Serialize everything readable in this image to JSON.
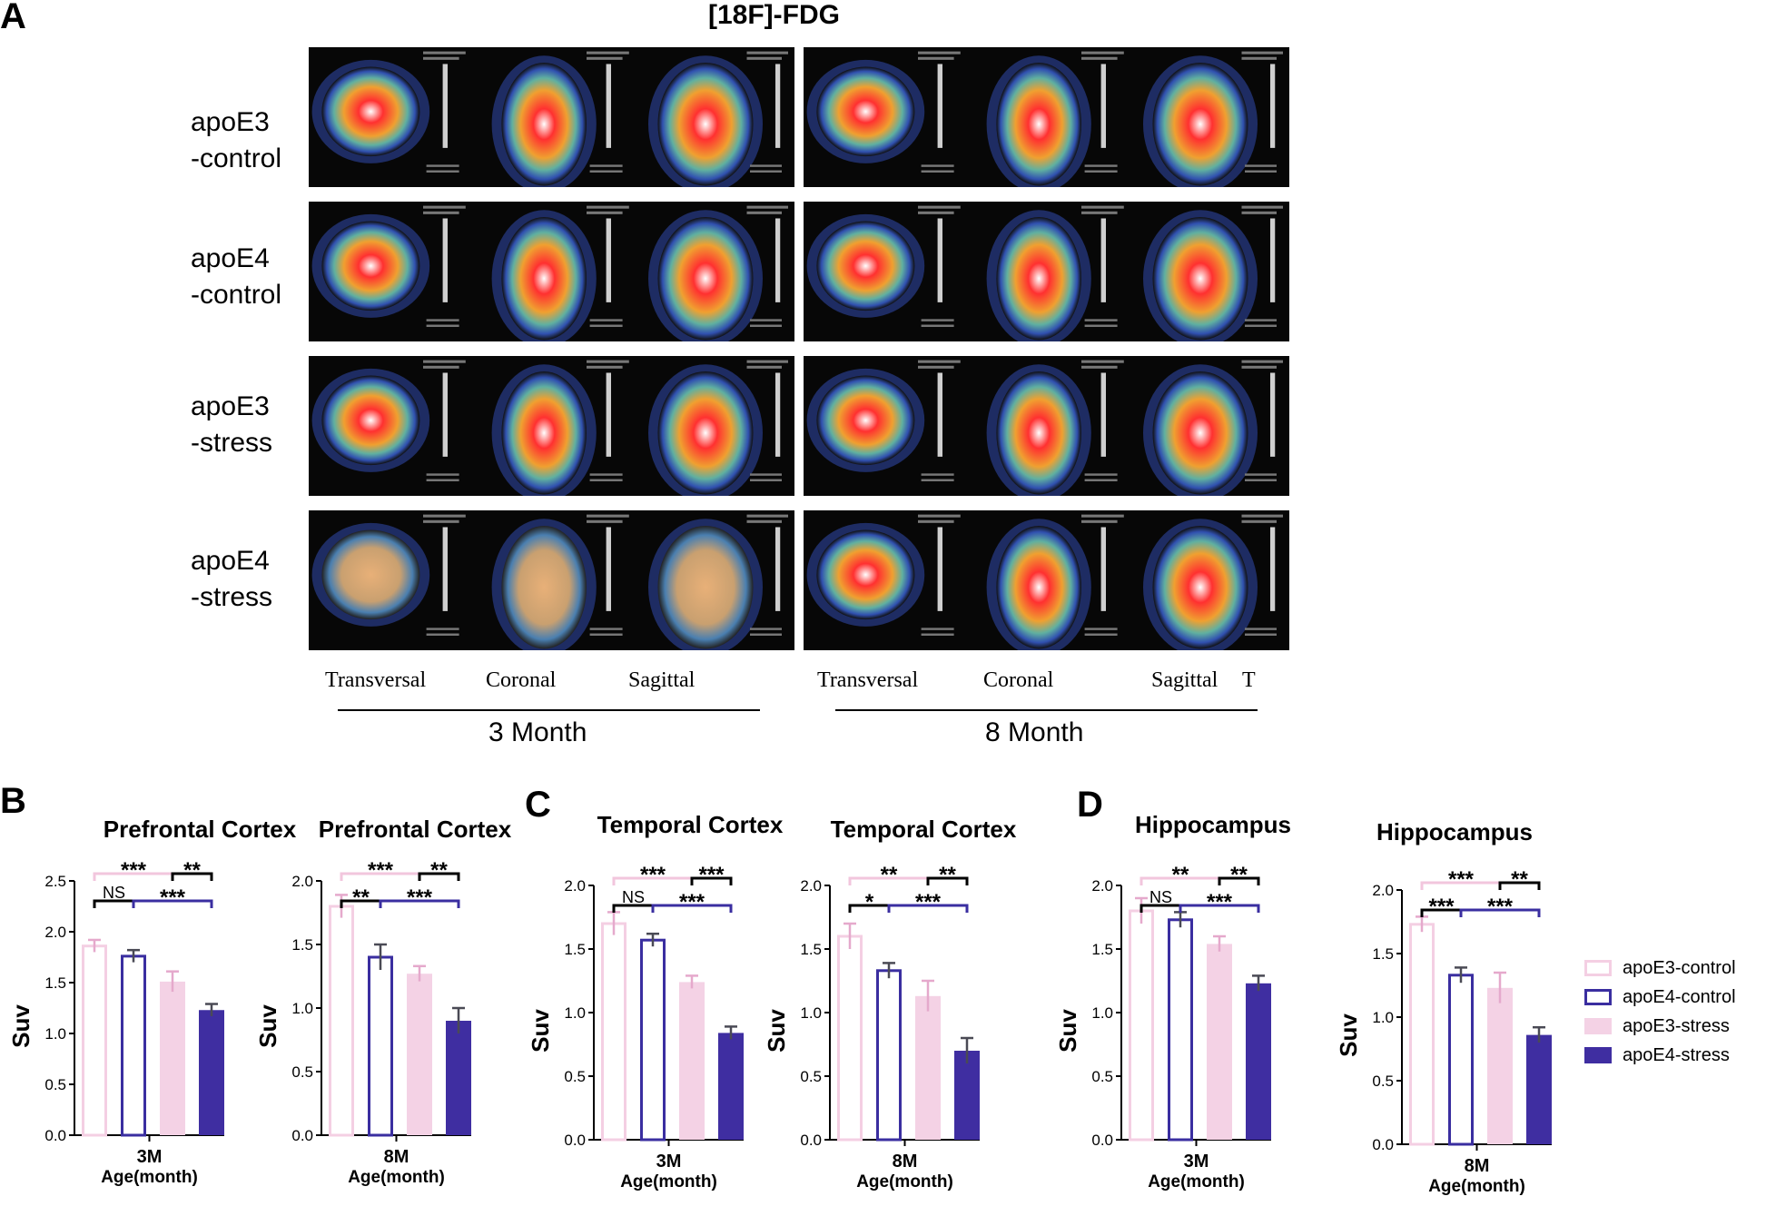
{
  "panel_a": {
    "letter": "A",
    "title": "[18F]-FDG",
    "rows": [
      "apoE3\n-control",
      "apoE4\n-control",
      "apoE3\n-stress",
      "apoE4\n-stress"
    ],
    "views": [
      "Transversal",
      "Coronal",
      "Sagittal"
    ],
    "views_3m_first": "Transversal",
    "truncated_mark": "T",
    "ages": [
      "3 Month",
      "8 Month"
    ]
  },
  "panel_letters": {
    "b": "B",
    "c": "C",
    "d": "D"
  },
  "colors": {
    "apoE3_control": "#f4cfe3",
    "apoE4_control": "#3a2ea0",
    "apoE3_stress": "#f4d2e5",
    "apoE4_stress": "#3f2ea1",
    "bracket_pink": "#f2c6dd",
    "bracket_black": "#000000",
    "bracket_blue": "#3a2ea0",
    "error_bar": "#4a4a55"
  },
  "legend": [
    "apoE3-control",
    "apoE4-control",
    "apoE3-stress",
    "apoE4-stress"
  ],
  "chart_data": [
    {
      "type": "bar",
      "panel": "B",
      "title": "Prefrontal Cortex",
      "categories": [
        "apoE3-control",
        "apoE4-control",
        "apoE3-stress",
        "apoE4-stress"
      ],
      "values": [
        1.86,
        1.76,
        1.51,
        1.23
      ],
      "errors": [
        0.06,
        0.06,
        0.1,
        0.06
      ],
      "ylim": [
        0,
        2.5
      ],
      "yticks": [
        "0.0",
        "0.5",
        "1.0",
        "1.5",
        "2.0",
        "2.5"
      ],
      "ylabel": "Suv",
      "xlabel": "3M",
      "xtitle": "Age(month)",
      "significance": [
        {
          "label": "***",
          "from": 0,
          "to": 2,
          "color": "pink"
        },
        {
          "label": "**",
          "from": 2,
          "to": 3,
          "color": "black"
        },
        {
          "label": "NS",
          "from": 0,
          "to": 1,
          "color": "black"
        },
        {
          "label": "***",
          "from": 1,
          "to": 3,
          "color": "blue"
        }
      ]
    },
    {
      "type": "bar",
      "panel": "B",
      "title": "Prefrontal Cortex",
      "categories": [
        "apoE3-control",
        "apoE4-control",
        "apoE3-stress",
        "apoE4-stress"
      ],
      "values": [
        1.8,
        1.4,
        1.27,
        0.9
      ],
      "errors": [
        0.09,
        0.1,
        0.06,
        0.1
      ],
      "ylim": [
        0,
        2.0
      ],
      "yticks": [
        "0.0",
        "0.5",
        "1.0",
        "1.5",
        "2.0"
      ],
      "ylabel": "Suv",
      "xlabel": "8M",
      "xtitle": "Age(month)",
      "significance": [
        {
          "label": "***",
          "from": 0,
          "to": 2,
          "color": "pink"
        },
        {
          "label": "**",
          "from": 2,
          "to": 3,
          "color": "black"
        },
        {
          "label": "**",
          "from": 0,
          "to": 1,
          "color": "black"
        },
        {
          "label": "***",
          "from": 1,
          "to": 3,
          "color": "blue"
        }
      ]
    },
    {
      "type": "bar",
      "panel": "C",
      "title": "Temporal Cortex",
      "categories": [
        "apoE3-control",
        "apoE4-control",
        "apoE3-stress",
        "apoE4-stress"
      ],
      "values": [
        1.7,
        1.57,
        1.24,
        0.84
      ],
      "errors": [
        0.09,
        0.05,
        0.05,
        0.05
      ],
      "ylim": [
        0,
        2.0
      ],
      "yticks": [
        "0.0",
        "0.5",
        "1.0",
        "1.5",
        "2.0"
      ],
      "ylabel": "Suv",
      "xlabel": "3M",
      "xtitle": "Age(month)",
      "significance": [
        {
          "label": "***",
          "from": 0,
          "to": 2,
          "color": "pink"
        },
        {
          "label": "***",
          "from": 2,
          "to": 3,
          "color": "black"
        },
        {
          "label": "NS",
          "from": 0,
          "to": 1,
          "color": "black"
        },
        {
          "label": "***",
          "from": 1,
          "to": 3,
          "color": "blue"
        }
      ]
    },
    {
      "type": "bar",
      "panel": "C",
      "title": "Temporal Cortex",
      "categories": [
        "apoE3-control",
        "apoE4-control",
        "apoE3-stress",
        "apoE4-stress"
      ],
      "values": [
        1.6,
        1.33,
        1.13,
        0.7
      ],
      "errors": [
        0.1,
        0.06,
        0.12,
        0.1
      ],
      "ylim": [
        0,
        2.0
      ],
      "yticks": [
        "0.0",
        "0.5",
        "1.0",
        "1.5",
        "2.0"
      ],
      "ylabel": "Suv",
      "xlabel": "8M",
      "xtitle": "Age(month)",
      "significance": [
        {
          "label": "**",
          "from": 0,
          "to": 2,
          "color": "pink"
        },
        {
          "label": "**",
          "from": 2,
          "to": 3,
          "color": "black"
        },
        {
          "label": "*",
          "from": 0,
          "to": 1,
          "color": "black"
        },
        {
          "label": "***",
          "from": 1,
          "to": 3,
          "color": "blue"
        }
      ]
    },
    {
      "type": "bar",
      "panel": "D",
      "title": "Hippocampus",
      "categories": [
        "apoE3-control",
        "apoE4-control",
        "apoE3-stress",
        "apoE4-stress"
      ],
      "values": [
        1.8,
        1.73,
        1.54,
        1.23
      ],
      "errors": [
        0.1,
        0.06,
        0.06,
        0.06
      ],
      "ylim": [
        0,
        2.0
      ],
      "yticks": [
        "0.0",
        "0.5",
        "1.0",
        "1.5",
        "2.0"
      ],
      "ylabel": "Suv",
      "xlabel": "3M",
      "xtitle": "Age(month)",
      "significance": [
        {
          "label": "**",
          "from": 0,
          "to": 2,
          "color": "pink"
        },
        {
          "label": "**",
          "from": 2,
          "to": 3,
          "color": "black"
        },
        {
          "label": "NS",
          "from": 0,
          "to": 1,
          "color": "black"
        },
        {
          "label": "***",
          "from": 1,
          "to": 3,
          "color": "blue"
        }
      ]
    },
    {
      "type": "bar",
      "panel": "D",
      "title": "Hippocampus",
      "categories": [
        "apoE3-control",
        "apoE4-control",
        "apoE3-stress",
        "apoE4-stress"
      ],
      "values": [
        1.73,
        1.33,
        1.23,
        0.86
      ],
      "errors": [
        0.06,
        0.06,
        0.12,
        0.06
      ],
      "ylim": [
        0,
        2.0
      ],
      "yticks": [
        "0.0",
        "0.5",
        "1.0",
        "1.5",
        "2.0"
      ],
      "ylabel": "Suv",
      "xlabel": "8M",
      "xtitle": "Age(month)",
      "significance": [
        {
          "label": "***",
          "from": 0,
          "to": 2,
          "color": "pink"
        },
        {
          "label": "**",
          "from": 2,
          "to": 3,
          "color": "black"
        },
        {
          "label": "***",
          "from": 0,
          "to": 1,
          "color": "black"
        },
        {
          "label": "***",
          "from": 1,
          "to": 3,
          "color": "blue"
        }
      ]
    }
  ]
}
